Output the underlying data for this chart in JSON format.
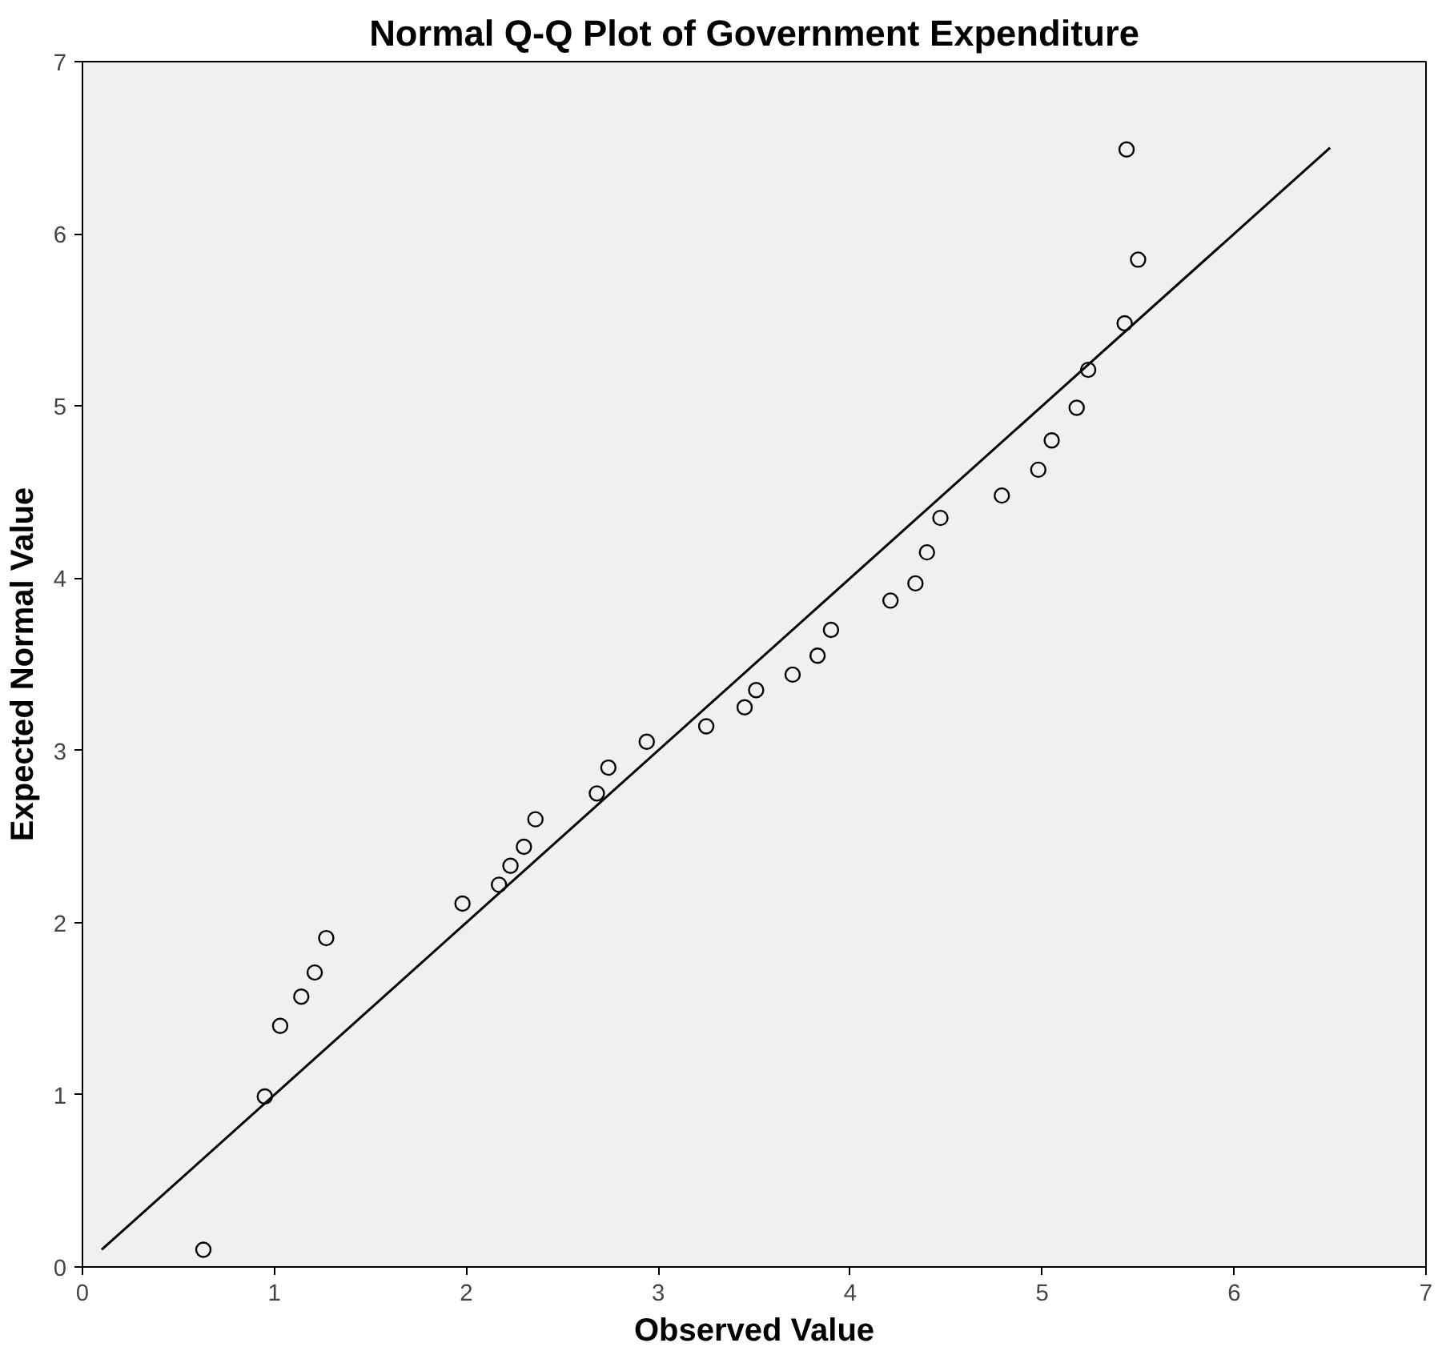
{
  "chart_data": {
    "type": "scatter",
    "title": "Normal Q-Q Plot of Government Expenditure",
    "xlabel": "Observed Value",
    "ylabel": "Expected Normal Value",
    "xlim": [
      0,
      7
    ],
    "ylim": [
      0,
      7
    ],
    "xticks": [
      0,
      1,
      2,
      3,
      4,
      5,
      6,
      7
    ],
    "yticks": [
      0,
      1,
      2,
      3,
      4,
      5,
      6,
      7
    ],
    "grid": false,
    "marker": "circle",
    "series": [
      {
        "color": "#000000",
        "x": [
          0.63,
          0.95,
          1.03,
          1.14,
          1.21,
          1.27,
          1.98,
          2.17,
          2.23,
          2.3,
          2.36,
          2.68,
          2.74,
          2.94,
          3.25,
          3.45,
          3.51,
          3.7,
          3.83,
          3.9,
          4.21,
          4.34,
          4.4,
          4.47,
          4.79,
          4.98,
          5.05,
          5.18,
          5.24,
          5.43,
          5.5,
          5.44
        ],
        "values": [
          0.1,
          0.99,
          1.4,
          1.57,
          1.71,
          1.91,
          2.11,
          2.22,
          2.33,
          2.44,
          2.6,
          2.75,
          2.9,
          3.05,
          3.14,
          3.25,
          3.35,
          3.44,
          3.55,
          3.7,
          3.87,
          3.97,
          4.15,
          4.35,
          4.48,
          4.63,
          4.8,
          4.99,
          5.21,
          5.48,
          5.85,
          6.49
        ]
      },
      {
        "type": "line",
        "color": "#000000",
        "x": [
          0.1,
          6.5
        ],
        "values": [
          0.1,
          6.5
        ],
        "line_style": "solid",
        "marker": "none"
      }
    ]
  }
}
